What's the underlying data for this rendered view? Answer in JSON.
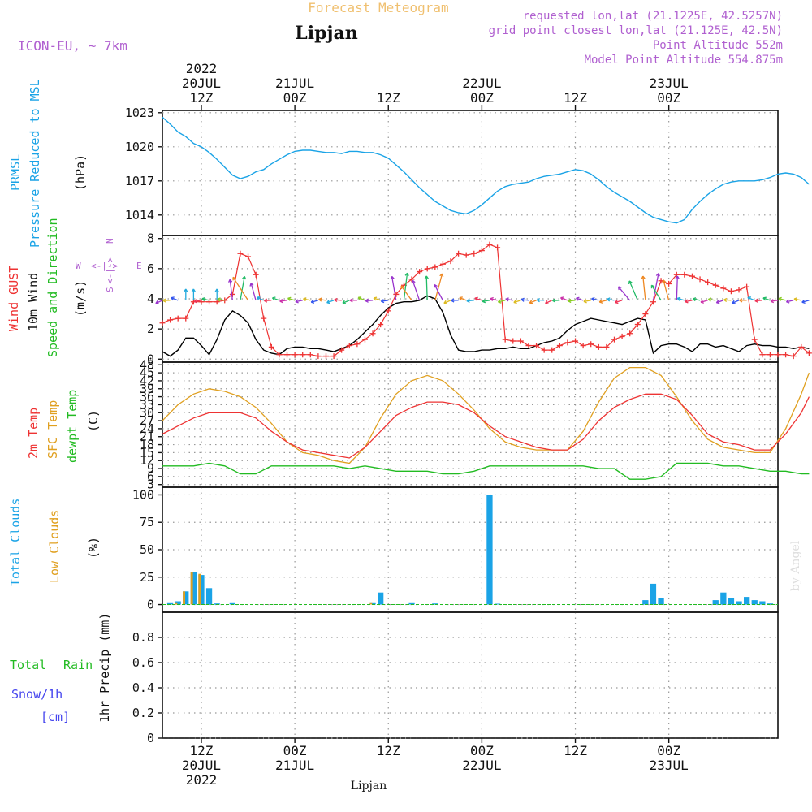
{
  "header": {
    "title": "Forecast Meteogram",
    "location": "Lipjan",
    "model": "ICON-EU, ~ 7km",
    "requested": "requested lon,lat (21.1225E, 42.5257N)",
    "grid_point": "grid point closest lon,lat (21.125E, 42.5N)",
    "point_altitude": "Point Altitude 552m",
    "model_altitude": "Model Point Altitude 554.875m",
    "footer_location": "Lipjan",
    "watermark": "by Angel"
  },
  "time_axis": {
    "start": "2022-07-20T07Z",
    "end": "2022-07-23T14Z",
    "top_year": "2022",
    "ticks": [
      {
        "time": "2022-07-20T12Z",
        "hour": "12Z",
        "date": "20JUL",
        "year": "2022"
      },
      {
        "time": "2022-07-21T00Z",
        "hour": "00Z",
        "date": "21JUL"
      },
      {
        "time": "2022-07-21T12Z",
        "hour": "12Z"
      },
      {
        "time": "2022-07-22T00Z",
        "hour": "00Z",
        "date": "22JUL"
      },
      {
        "time": "2022-07-22T12Z",
        "hour": "12Z"
      },
      {
        "time": "2022-07-23T00Z",
        "hour": "00Z",
        "date": "23JUL"
      }
    ]
  },
  "colors": {
    "pressure": "#1aa3e6",
    "gust": "#ee3333",
    "wind": "#000000",
    "wind_dir_label": "#22bb22",
    "temp2m": "#ee3333",
    "sfc": "#e0a020",
    "dewpt": "#22bb22",
    "total_clouds": "#1aa3e6",
    "low_clouds": "#e0a020",
    "rain": "#22bb22",
    "snow": "#4444ee",
    "compass": "#b060d0",
    "header_title": "#f0c070",
    "header_info": "#b060d0"
  },
  "panels": {
    "pressure": {
      "labels": [
        "PRMSL",
        "Pressure Reduced to MSL",
        "(hPa)"
      ],
      "yticks": [
        "1023",
        "1020",
        "1017",
        "1014"
      ]
    },
    "wind": {
      "labels": [
        "Wind GUST",
        "10m Wind",
        "Speed and Direction",
        "(m/s)"
      ],
      "yticks": [
        "8",
        "6",
        "4",
        "2",
        "0"
      ],
      "compass": {
        "n": "N",
        "s": "S",
        "w": "W",
        "e": "E",
        "arrows": "<-|->"
      }
    },
    "temp": {
      "labels": [
        "2m Temp",
        "SFC Temp",
        "dewpt Temp",
        "(C)"
      ],
      "yticks": [
        "48",
        "45",
        "42",
        "39",
        "36",
        "33",
        "30",
        "27",
        "24",
        "21",
        "18",
        "15",
        "12",
        "9",
        "6",
        "3"
      ]
    },
    "clouds": {
      "labels": [
        "Total Clouds",
        "Low Clouds",
        "(%)"
      ],
      "yticks": [
        "100",
        "75",
        "50",
        "25",
        "0"
      ]
    },
    "precip": {
      "labels": [
        "Total",
        "Rain",
        "Snow/1h",
        "[cm]",
        "1hr Precip (mm)"
      ],
      "yticks": [
        "0.8",
        "0.6",
        "0.4",
        "0.2",
        "0"
      ]
    }
  },
  "chart_data": [
    {
      "type": "line",
      "name": "pressure",
      "ylim": [
        1012.2,
        1023.2
      ],
      "x_hours_from_start": [
        0,
        1,
        2,
        3,
        4,
        5,
        6,
        7,
        8,
        9,
        10,
        11,
        12,
        13,
        14,
        15,
        16,
        17,
        18,
        19,
        20,
        21,
        22,
        23,
        24,
        25,
        26,
        27,
        28,
        29,
        30,
        31,
        32,
        33,
        34,
        35,
        36,
        37,
        38,
        39,
        40,
        41,
        42,
        43,
        44,
        45,
        46,
        47,
        48,
        49,
        50,
        51,
        52,
        53,
        54,
        55,
        56,
        57,
        58,
        59,
        60,
        61,
        62,
        63,
        64,
        65,
        66,
        67,
        68,
        69,
        70,
        71,
        72,
        73,
        74,
        75,
        76,
        77,
        78,
        79,
        80,
        81,
        82,
        83
      ],
      "series": [
        {
          "values": [
            1022.6,
            1022.0,
            1021.3,
            1020.9,
            1020.3,
            1020.0,
            1019.5,
            1018.9,
            1018.2,
            1017.5,
            1017.2,
            1017.4,
            1017.8,
            1018.0,
            1018.5,
            1018.9,
            1019.3,
            1019.6,
            1019.7,
            1019.7,
            1019.6,
            1019.5,
            1019.5,
            1019.4,
            1019.6,
            1019.6,
            1019.5,
            1019.5,
            1019.3,
            1019.0,
            1018.4,
            1017.8,
            1017.1,
            1016.4,
            1015.8,
            1015.2,
            1014.8,
            1014.4,
            1014.2,
            1014.1,
            1014.4,
            1014.9,
            1015.5,
            1016.1,
            1016.5,
            1016.7,
            1016.8,
            1016.9,
            1017.2,
            1017.4,
            1017.5,
            1017.6,
            1017.8,
            1018.0,
            1017.9,
            1017.6,
            1017.1,
            1016.5,
            1016.0,
            1015.6,
            1015.2,
            1014.7,
            1014.2,
            1013.8,
            1013.6,
            1013.4,
            1013.3,
            1013.6,
            1014.5,
            1015.2,
            1015.8,
            1016.3,
            1016.7,
            1016.9,
            1017.0,
            1017.0,
            1017.0,
            1017.1,
            1017.3,
            1017.6,
            1017.7,
            1017.6,
            1017.3,
            1016.7
          ]
        }
      ]
    },
    {
      "type": "line",
      "name": "wind",
      "ylim": [
        -0.2,
        8.2
      ],
      "series": [
        {
          "name": "Wind GUST",
          "x_hours_from_start": [
            0,
            1,
            2,
            3,
            4,
            5,
            6,
            7,
            8,
            9,
            10,
            11,
            12,
            13,
            14,
            15,
            16,
            17,
            18,
            19,
            20,
            21,
            22,
            23,
            24,
            25,
            26,
            27,
            28,
            29,
            30,
            31,
            32,
            33,
            34,
            35,
            36,
            37,
            38,
            39,
            40,
            41,
            42,
            43,
            44,
            45,
            46,
            47,
            48,
            49,
            50,
            51,
            52,
            53,
            54,
            55,
            56,
            57,
            58,
            59,
            60,
            61,
            62,
            63,
            64,
            65,
            66,
            67,
            68,
            69,
            70,
            71,
            72,
            73,
            74,
            75,
            76,
            77,
            78,
            79,
            80,
            81,
            82,
            83
          ],
          "values": [
            2.4,
            2.6,
            2.7,
            2.7,
            3.8,
            3.8,
            3.8,
            3.8,
            3.9,
            4.3,
            7.0,
            6.8,
            5.6,
            2.7,
            0.8,
            0.3,
            0.3,
            0.3,
            0.3,
            0.3,
            0.2,
            0.2,
            0.2,
            0.6,
            0.9,
            1.0,
            1.3,
            1.7,
            2.3,
            3.2,
            4.3,
            4.9,
            5.3,
            5.8,
            6.0,
            6.1,
            6.3,
            6.5,
            7.0,
            6.9,
            7.0,
            7.2,
            7.6,
            7.4,
            1.3,
            1.2,
            1.2,
            0.9,
            0.9,
            0.6,
            0.6,
            0.9,
            1.1,
            1.2,
            0.9,
            1.0,
            0.8,
            0.8,
            1.3,
            1.5,
            1.7,
            2.3,
            3.0,
            3.8,
            5.2,
            5.0,
            5.6,
            5.6,
            5.5,
            5.3,
            5.1,
            4.9,
            4.7,
            4.5,
            4.6,
            4.8,
            1.3,
            0.3,
            0.3,
            0.3,
            0.3,
            0.2,
            0.8,
            0.4
          ]
        },
        {
          "name": "10m Wind",
          "x_hours_from_start": [
            0,
            1,
            2,
            3,
            4,
            5,
            6,
            7,
            8,
            9,
            10,
            11,
            12,
            13,
            14,
            15,
            16,
            17,
            18,
            19,
            20,
            21,
            22,
            23,
            24,
            25,
            26,
            27,
            28,
            29,
            30,
            31,
            32,
            33,
            34,
            35,
            36,
            37,
            38,
            39,
            40,
            41,
            42,
            43,
            44,
            45,
            46,
            47,
            48,
            49,
            50,
            51,
            52,
            53,
            54,
            55,
            56,
            57,
            58,
            59,
            60,
            61,
            62,
            63,
            64,
            65,
            66,
            67,
            68,
            69,
            70,
            71,
            72,
            73,
            74,
            75,
            76,
            77,
            78,
            79,
            80,
            81,
            82,
            83
          ],
          "values": [
            0.5,
            0.2,
            0.6,
            1.4,
            1.4,
            0.9,
            0.3,
            1.3,
            2.6,
            3.2,
            2.9,
            2.4,
            1.3,
            0.6,
            0.4,
            0.3,
            0.7,
            0.8,
            0.8,
            0.7,
            0.7,
            0.6,
            0.5,
            0.7,
            0.9,
            1.3,
            1.8,
            2.3,
            2.9,
            3.4,
            3.7,
            3.8,
            3.8,
            3.9,
            4.2,
            4.0,
            3.1,
            1.6,
            0.6,
            0.5,
            0.5,
            0.6,
            0.6,
            0.7,
            0.7,
            0.8,
            0.7,
            0.7,
            0.9,
            1.1,
            1.2,
            1.4,
            1.9,
            2.3,
            2.5,
            2.7,
            2.6,
            2.5,
            2.4,
            2.3,
            2.5,
            2.7,
            2.6,
            0.4,
            0.9,
            1.0,
            1.0,
            0.8,
            0.5,
            1.0,
            1.0,
            0.8,
            0.9,
            0.7,
            0.5,
            0.9,
            1.0,
            0.9,
            0.9,
            0.8,
            0.8,
            0.7,
            0.8,
            0.7
          ]
        }
      ]
    },
    {
      "type": "line",
      "name": "temperature",
      "ylim": [
        2,
        49
      ],
      "x_hours_from_start": [
        0,
        2,
        4,
        6,
        8,
        10,
        12,
        14,
        16,
        18,
        20,
        22,
        24,
        26,
        28,
        30,
        32,
        34,
        36,
        38,
        40,
        42,
        44,
        46,
        48,
        50,
        52,
        54,
        56,
        58,
        60,
        62,
        64,
        66,
        68,
        70,
        72,
        74,
        76,
        78,
        80,
        82,
        83
      ],
      "series": [
        {
          "name": "2m Temp",
          "values": [
            22,
            25,
            28,
            30,
            30,
            30,
            28,
            23,
            19,
            16,
            15,
            14,
            13,
            17,
            23,
            29,
            32,
            34,
            34,
            33,
            30,
            25,
            21,
            19,
            17,
            16,
            16,
            20,
            27,
            32,
            35,
            37,
            37,
            35,
            29,
            22,
            19,
            18,
            16,
            16,
            22,
            30,
            36
          ]
        },
        {
          "name": "SFC Temp",
          "values": [
            27,
            33,
            37,
            39,
            38,
            36,
            32,
            26,
            19,
            15,
            14,
            12,
            11,
            17,
            28,
            37,
            42,
            44,
            42,
            37,
            31,
            24,
            19,
            17,
            16,
            16,
            16,
            23,
            34,
            43,
            47,
            47,
            44,
            36,
            27,
            20,
            17,
            16,
            15,
            15,
            24,
            37,
            45
          ]
        },
        {
          "name": "dewpt Temp",
          "values": [
            10,
            10,
            10,
            11,
            10,
            7,
            7,
            10,
            10,
            10,
            10,
            10,
            9,
            10,
            9,
            8,
            8,
            8,
            7,
            7,
            8,
            10,
            10,
            10,
            10,
            10,
            10,
            10,
            9,
            9,
            5,
            5,
            6,
            11,
            11,
            11,
            10,
            10,
            9,
            8,
            8,
            7,
            7
          ]
        }
      ]
    },
    {
      "type": "bar",
      "name": "clouds",
      "ylim": [
        0,
        100
      ],
      "series": [
        {
          "name": "Total Clouds",
          "x_hours_from_start": [
            1,
            2,
            3,
            4,
            5,
            6,
            7,
            9,
            27,
            28,
            32,
            35,
            42,
            43,
            62,
            63,
            64,
            71,
            72,
            73,
            74,
            75,
            76,
            77,
            78
          ],
          "values": [
            2,
            3,
            12,
            30,
            27,
            15,
            1,
            2,
            2,
            11,
            2,
            1,
            100,
            0,
            4,
            19,
            6,
            4,
            11,
            6,
            3,
            7,
            4,
            3,
            1
          ]
        },
        {
          "name": "Low Clouds",
          "x_hours_from_start": [
            2,
            3,
            4,
            5,
            27
          ],
          "values": [
            2,
            12,
            30,
            28,
            2
          ]
        }
      ]
    },
    {
      "type": "bar",
      "name": "precipitation",
      "ylim": [
        0,
        1.0
      ],
      "series": [
        {
          "name": "Total Rain",
          "values": []
        },
        {
          "name": "Snow/1h",
          "values": []
        }
      ]
    }
  ]
}
